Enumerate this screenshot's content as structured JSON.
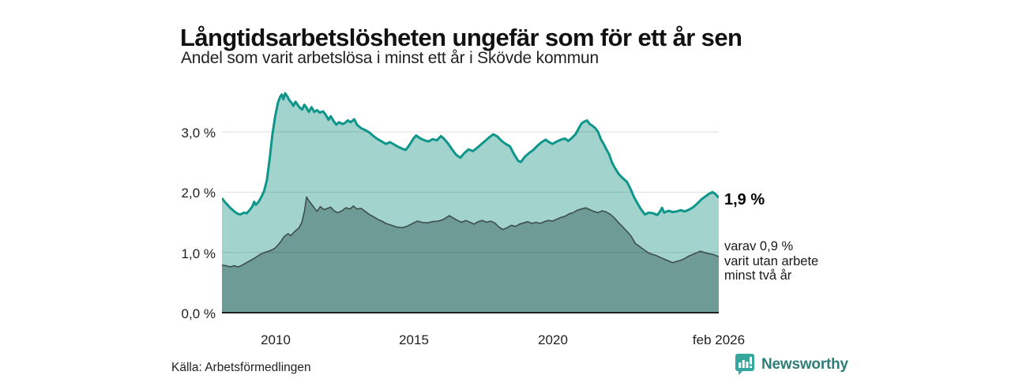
{
  "header": {
    "title": "Långtidsarbetslösheten ungefär som för ett år sen",
    "subtitle": "Andel som varit arbetslösa i minst ett år i Skövde kommun"
  },
  "annotations": {
    "total_label": "1,9 %",
    "subset_line1": "varav 0,9 %",
    "subset_line2": "varit utan arbete",
    "subset_line3": "minst två år"
  },
  "footer": {
    "source": "Källa: Arbetsförmedlingen",
    "brand": "Newsworthy"
  },
  "colors": {
    "area_1yr_fill": "#a2d3cd",
    "area_1yr_line": "#0f968b",
    "area_2yr_fill": "#6e9b96",
    "area_2yr_line": "#3d4e4b",
    "gridline": "#d9d9d9",
    "baseline": "#1f1f1f",
    "brand_teal": "#2e7d78",
    "brand_mark": "#35a79c"
  },
  "chart_data": {
    "type": "area",
    "title": "Långtidsarbetslösheten ungefär som för ett år sen",
    "subtitle": "Andel som varit arbetslösa i minst ett år i Skövde kommun",
    "source": "Källa: Arbetsförmedlingen",
    "unit": "%",
    "grid": "horizontal",
    "legend_position": "none",
    "x_domain": [
      2008.05,
      2026.08
    ],
    "ylim": [
      0,
      3.8
    ],
    "y_gridline_values": [
      1,
      2,
      3
    ],
    "y_ticks": [
      "3,0 %",
      "2,0 %",
      "1,0 %",
      "0,0 %"
    ],
    "y_tick_values": [
      3,
      2,
      1,
      0
    ],
    "x_ticks": [
      {
        "label": "2010",
        "year": 2010
      },
      {
        "label": "2015",
        "year": 2015
      },
      {
        "label": "2020",
        "year": 2020
      },
      {
        "label": "feb 2026",
        "year": 2026.08
      }
    ],
    "series": [
      {
        "name": "Andel som varit arbetslösa i minst ett år",
        "end_value": "1,9 %",
        "fill": "#a2d3cd",
        "stroke": "#0f968b",
        "stroke_width": 3,
        "points": [
          [
            2008.05,
            1.9
          ],
          [
            2008.15,
            1.84
          ],
          [
            2008.25,
            1.79
          ],
          [
            2008.35,
            1.74
          ],
          [
            2008.5,
            1.68
          ],
          [
            2008.62,
            1.64
          ],
          [
            2008.72,
            1.63
          ],
          [
            2008.85,
            1.66
          ],
          [
            2008.95,
            1.65
          ],
          [
            2009.05,
            1.7
          ],
          [
            2009.15,
            1.76
          ],
          [
            2009.22,
            1.84
          ],
          [
            2009.28,
            1.79
          ],
          [
            2009.38,
            1.84
          ],
          [
            2009.48,
            1.92
          ],
          [
            2009.58,
            2.02
          ],
          [
            2009.68,
            2.2
          ],
          [
            2009.78,
            2.55
          ],
          [
            2009.88,
            2.95
          ],
          [
            2009.98,
            3.25
          ],
          [
            2010.08,
            3.48
          ],
          [
            2010.16,
            3.58
          ],
          [
            2010.22,
            3.62
          ],
          [
            2010.28,
            3.54
          ],
          [
            2010.34,
            3.64
          ],
          [
            2010.42,
            3.59
          ],
          [
            2010.5,
            3.52
          ],
          [
            2010.58,
            3.48
          ],
          [
            2010.64,
            3.43
          ],
          [
            2010.72,
            3.5
          ],
          [
            2010.8,
            3.45
          ],
          [
            2010.88,
            3.4
          ],
          [
            2010.96,
            3.37
          ],
          [
            2011.04,
            3.45
          ],
          [
            2011.12,
            3.4
          ],
          [
            2011.2,
            3.33
          ],
          [
            2011.3,
            3.41
          ],
          [
            2011.4,
            3.33
          ],
          [
            2011.5,
            3.36
          ],
          [
            2011.6,
            3.32
          ],
          [
            2011.72,
            3.34
          ],
          [
            2011.82,
            3.28
          ],
          [
            2011.92,
            3.2
          ],
          [
            2012.0,
            3.26
          ],
          [
            2012.1,
            3.18
          ],
          [
            2012.2,
            3.12
          ],
          [
            2012.3,
            3.16
          ],
          [
            2012.42,
            3.13
          ],
          [
            2012.52,
            3.15
          ],
          [
            2012.62,
            3.19
          ],
          [
            2012.72,
            3.16
          ],
          [
            2012.85,
            3.21
          ],
          [
            2012.95,
            3.12
          ],
          [
            2013.1,
            3.06
          ],
          [
            2013.25,
            3.03
          ],
          [
            2013.4,
            2.99
          ],
          [
            2013.55,
            2.93
          ],
          [
            2013.7,
            2.88
          ],
          [
            2013.85,
            2.84
          ],
          [
            2014.0,
            2.8
          ],
          [
            2014.15,
            2.83
          ],
          [
            2014.3,
            2.79
          ],
          [
            2014.45,
            2.75
          ],
          [
            2014.6,
            2.72
          ],
          [
            2014.72,
            2.7
          ],
          [
            2014.85,
            2.78
          ],
          [
            2015.0,
            2.89
          ],
          [
            2015.1,
            2.94
          ],
          [
            2015.25,
            2.89
          ],
          [
            2015.4,
            2.86
          ],
          [
            2015.55,
            2.84
          ],
          [
            2015.7,
            2.88
          ],
          [
            2015.85,
            2.86
          ],
          [
            2016.0,
            2.93
          ],
          [
            2016.1,
            2.89
          ],
          [
            2016.25,
            2.81
          ],
          [
            2016.4,
            2.71
          ],
          [
            2016.55,
            2.62
          ],
          [
            2016.7,
            2.57
          ],
          [
            2016.85,
            2.65
          ],
          [
            2017.0,
            2.71
          ],
          [
            2017.15,
            2.68
          ],
          [
            2017.3,
            2.73
          ],
          [
            2017.45,
            2.79
          ],
          [
            2017.6,
            2.85
          ],
          [
            2017.75,
            2.91
          ],
          [
            2017.9,
            2.96
          ],
          [
            2018.05,
            2.92
          ],
          [
            2018.2,
            2.85
          ],
          [
            2018.35,
            2.8
          ],
          [
            2018.5,
            2.76
          ],
          [
            2018.65,
            2.63
          ],
          [
            2018.8,
            2.52
          ],
          [
            2018.9,
            2.5
          ],
          [
            2019.05,
            2.59
          ],
          [
            2019.2,
            2.65
          ],
          [
            2019.35,
            2.7
          ],
          [
            2019.5,
            2.77
          ],
          [
            2019.65,
            2.83
          ],
          [
            2019.8,
            2.87
          ],
          [
            2019.92,
            2.83
          ],
          [
            2020.05,
            2.8
          ],
          [
            2020.2,
            2.84
          ],
          [
            2020.35,
            2.87
          ],
          [
            2020.5,
            2.89
          ],
          [
            2020.62,
            2.85
          ],
          [
            2020.75,
            2.9
          ],
          [
            2020.88,
            2.96
          ],
          [
            2021.0,
            3.06
          ],
          [
            2021.1,
            3.14
          ],
          [
            2021.2,
            3.17
          ],
          [
            2021.3,
            3.19
          ],
          [
            2021.4,
            3.13
          ],
          [
            2021.5,
            3.1
          ],
          [
            2021.6,
            3.06
          ],
          [
            2021.7,
            3.0
          ],
          [
            2021.8,
            2.88
          ],
          [
            2021.9,
            2.8
          ],
          [
            2022.0,
            2.71
          ],
          [
            2022.1,
            2.63
          ],
          [
            2022.2,
            2.5
          ],
          [
            2022.3,
            2.41
          ],
          [
            2022.45,
            2.3
          ],
          [
            2022.6,
            2.23
          ],
          [
            2022.75,
            2.17
          ],
          [
            2022.88,
            2.05
          ],
          [
            2023.0,
            1.92
          ],
          [
            2023.1,
            1.84
          ],
          [
            2023.25,
            1.72
          ],
          [
            2023.4,
            1.63
          ],
          [
            2023.55,
            1.66
          ],
          [
            2023.7,
            1.65
          ],
          [
            2023.85,
            1.62
          ],
          [
            2023.95,
            1.68
          ],
          [
            2024.02,
            1.74
          ],
          [
            2024.1,
            1.66
          ],
          [
            2024.25,
            1.69
          ],
          [
            2024.4,
            1.67
          ],
          [
            2024.55,
            1.68
          ],
          [
            2024.7,
            1.7
          ],
          [
            2024.85,
            1.68
          ],
          [
            2025.0,
            1.71
          ],
          [
            2025.15,
            1.75
          ],
          [
            2025.3,
            1.81
          ],
          [
            2025.45,
            1.88
          ],
          [
            2025.6,
            1.93
          ],
          [
            2025.72,
            1.97
          ],
          [
            2025.85,
            2.0
          ],
          [
            2025.95,
            1.97
          ],
          [
            2026.08,
            1.91
          ]
        ]
      },
      {
        "name": "varav varit utan arbete minst två år",
        "end_value": "0,9 %",
        "fill": "#6e9b96",
        "stroke": "#3d4e4b",
        "stroke_width": 1.6,
        "points": [
          [
            2008.05,
            0.79
          ],
          [
            2008.2,
            0.78
          ],
          [
            2008.35,
            0.76
          ],
          [
            2008.5,
            0.78
          ],
          [
            2008.62,
            0.76
          ],
          [
            2008.75,
            0.78
          ],
          [
            2008.9,
            0.82
          ],
          [
            2009.05,
            0.86
          ],
          [
            2009.18,
            0.89
          ],
          [
            2009.32,
            0.93
          ],
          [
            2009.45,
            0.97
          ],
          [
            2009.6,
            1.0
          ],
          [
            2009.75,
            1.02
          ],
          [
            2009.9,
            1.05
          ],
          [
            2010.0,
            1.08
          ],
          [
            2010.1,
            1.13
          ],
          [
            2010.2,
            1.19
          ],
          [
            2010.3,
            1.26
          ],
          [
            2010.45,
            1.31
          ],
          [
            2010.55,
            1.28
          ],
          [
            2010.7,
            1.35
          ],
          [
            2010.85,
            1.41
          ],
          [
            2010.95,
            1.5
          ],
          [
            2011.05,
            1.7
          ],
          [
            2011.12,
            1.92
          ],
          [
            2011.2,
            1.86
          ],
          [
            2011.3,
            1.8
          ],
          [
            2011.4,
            1.74
          ],
          [
            2011.5,
            1.68
          ],
          [
            2011.62,
            1.76
          ],
          [
            2011.75,
            1.71
          ],
          [
            2011.88,
            1.73
          ],
          [
            2012.0,
            1.75
          ],
          [
            2012.12,
            1.69
          ],
          [
            2012.25,
            1.66
          ],
          [
            2012.4,
            1.69
          ],
          [
            2012.55,
            1.74
          ],
          [
            2012.7,
            1.72
          ],
          [
            2012.82,
            1.77
          ],
          [
            2012.95,
            1.72
          ],
          [
            2013.1,
            1.73
          ],
          [
            2013.25,
            1.68
          ],
          [
            2013.4,
            1.63
          ],
          [
            2013.55,
            1.59
          ],
          [
            2013.7,
            1.55
          ],
          [
            2013.85,
            1.52
          ],
          [
            2014.0,
            1.48
          ],
          [
            2014.2,
            1.45
          ],
          [
            2014.4,
            1.42
          ],
          [
            2014.6,
            1.41
          ],
          [
            2014.8,
            1.44
          ],
          [
            2015.0,
            1.49
          ],
          [
            2015.15,
            1.52
          ],
          [
            2015.3,
            1.5
          ],
          [
            2015.5,
            1.49
          ],
          [
            2015.7,
            1.51
          ],
          [
            2015.9,
            1.52
          ],
          [
            2016.1,
            1.55
          ],
          [
            2016.3,
            1.61
          ],
          [
            2016.45,
            1.57
          ],
          [
            2016.6,
            1.53
          ],
          [
            2016.75,
            1.5
          ],
          [
            2016.9,
            1.53
          ],
          [
            2017.05,
            1.5
          ],
          [
            2017.2,
            1.47
          ],
          [
            2017.35,
            1.51
          ],
          [
            2017.5,
            1.53
          ],
          [
            2017.65,
            1.5
          ],
          [
            2017.8,
            1.52
          ],
          [
            2017.95,
            1.49
          ],
          [
            2018.1,
            1.42
          ],
          [
            2018.25,
            1.38
          ],
          [
            2018.4,
            1.41
          ],
          [
            2018.55,
            1.45
          ],
          [
            2018.7,
            1.43
          ],
          [
            2018.85,
            1.47
          ],
          [
            2019.0,
            1.49
          ],
          [
            2019.15,
            1.51
          ],
          [
            2019.3,
            1.48
          ],
          [
            2019.45,
            1.5
          ],
          [
            2019.6,
            1.48
          ],
          [
            2019.75,
            1.51
          ],
          [
            2019.9,
            1.53
          ],
          [
            2020.05,
            1.52
          ],
          [
            2020.2,
            1.55
          ],
          [
            2020.35,
            1.58
          ],
          [
            2020.5,
            1.6
          ],
          [
            2020.65,
            1.64
          ],
          [
            2020.8,
            1.66
          ],
          [
            2020.95,
            1.7
          ],
          [
            2021.1,
            1.72
          ],
          [
            2021.25,
            1.74
          ],
          [
            2021.4,
            1.71
          ],
          [
            2021.55,
            1.68
          ],
          [
            2021.7,
            1.66
          ],
          [
            2021.85,
            1.69
          ],
          [
            2022.0,
            1.67
          ],
          [
            2022.15,
            1.63
          ],
          [
            2022.3,
            1.57
          ],
          [
            2022.45,
            1.49
          ],
          [
            2022.6,
            1.42
          ],
          [
            2022.75,
            1.35
          ],
          [
            2022.9,
            1.27
          ],
          [
            2023.05,
            1.15
          ],
          [
            2023.2,
            1.1
          ],
          [
            2023.35,
            1.05
          ],
          [
            2023.5,
            1.0
          ],
          [
            2023.65,
            0.97
          ],
          [
            2023.8,
            0.95
          ],
          [
            2023.95,
            0.92
          ],
          [
            2024.1,
            0.89
          ],
          [
            2024.25,
            0.86
          ],
          [
            2024.4,
            0.83
          ],
          [
            2024.55,
            0.85
          ],
          [
            2024.7,
            0.87
          ],
          [
            2024.85,
            0.9
          ],
          [
            2025.0,
            0.94
          ],
          [
            2025.15,
            0.97
          ],
          [
            2025.3,
            1.0
          ],
          [
            2025.42,
            1.02
          ],
          [
            2025.55,
            1.0
          ],
          [
            2025.7,
            0.98
          ],
          [
            2025.85,
            0.97
          ],
          [
            2026.08,
            0.93
          ]
        ]
      }
    ]
  }
}
